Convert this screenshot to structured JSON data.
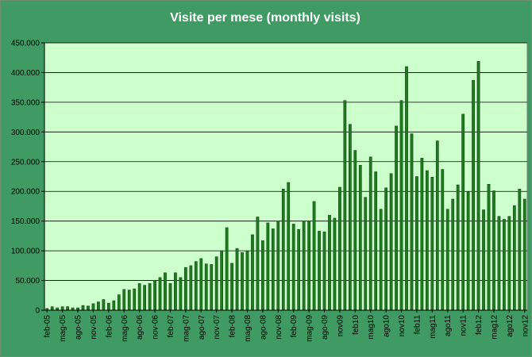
{
  "chart_data": {
    "type": "bar",
    "title": "Visite per mese (monthly visits)",
    "xlabel": "",
    "ylabel": "",
    "ylim": [
      0,
      450000
    ],
    "y_ticks": [
      "0",
      "50.000",
      "100.000",
      "150.000",
      "200.000",
      "250.000",
      "300.000",
      "350.000",
      "400.000",
      "450.000"
    ],
    "grid": true,
    "legend": "none",
    "bar_color": "#1f7a1f",
    "plot_background": "#ccffcc",
    "categories": [
      "feb-05",
      "mar-05",
      "apr-05",
      "mag-05",
      "giu-05",
      "lug-05",
      "ago-05",
      "set-05",
      "ott-05",
      "nov-05",
      "dic-05",
      "gen-06",
      "feb-06",
      "mar-06",
      "apr-06",
      "mag-06",
      "giu-06",
      "lug-06",
      "ago-06",
      "set-06",
      "ott-06",
      "nov-06",
      "dic-06",
      "gen-07",
      "feb-07",
      "mar-07",
      "apr-07",
      "mag-07",
      "giu-07",
      "lug-07",
      "ago-07",
      "set-07",
      "ott-07",
      "nov-07",
      "dic-07",
      "gen-08",
      "feb-08",
      "mar-08",
      "apr-08",
      "mag-08",
      "giu-08",
      "lug-08",
      "ago-08",
      "set-08",
      "ott-08",
      "nov-08",
      "dic-08",
      "gen-09",
      "feb-09",
      "mar-09",
      "apr-09",
      "mag-09",
      "giu-09",
      "lug-09",
      "ago-09",
      "set-09",
      "ott-09",
      "nov-09",
      "dic-09",
      "gen-10",
      "feb-10",
      "mar-10",
      "apr-10",
      "mag-10",
      "giu-10",
      "lug-10",
      "ago-10",
      "set-10",
      "ott-10",
      "nov-10",
      "dic-10",
      "gen-11",
      "feb-11",
      "mar-11",
      "apr-11",
      "mag-11",
      "giu-11",
      "lug-11",
      "ago-11",
      "set-11",
      "ott-11",
      "nov-11",
      "dic-11",
      "gen-12",
      "feb-12",
      "mar-12",
      "apr-12",
      "mag-12",
      "giu-12",
      "lug-12",
      "ago-12",
      "set-12",
      "ott-12",
      "nov-12"
    ],
    "x_tick_labels": [
      "feb-05",
      "mag-05",
      "ago-05",
      "nov-05",
      "feb-06",
      "mag-06",
      "ago-06",
      "nov-06",
      "feb-07",
      "mag-07",
      "ago-07",
      "nov-07",
      "feb-08",
      "mag-08",
      "ago-08",
      "nov-08",
      "feb-09",
      "mag-09",
      "ago-09",
      "nov09",
      "feb10",
      "mag10",
      "ago10",
      "nov10",
      "feb11",
      "mag11",
      "ago11",
      "nov11",
      "feb12",
      "mag12",
      "ago12",
      "nov12"
    ],
    "values": [
      3000,
      6000,
      4000,
      6000,
      6000,
      4000,
      4000,
      8000,
      7000,
      11000,
      14000,
      18000,
      12000,
      16000,
      26000,
      35000,
      34000,
      36000,
      45000,
      42000,
      45000,
      50000,
      55000,
      63000,
      45000,
      63000,
      55000,
      72000,
      75000,
      82000,
      87000,
      78000,
      77000,
      90000,
      100000,
      139000,
      79000,
      104000,
      97000,
      100000,
      127000,
      157000,
      117000,
      147000,
      137000,
      150000,
      204000,
      215000,
      145000,
      136000,
      150000,
      150000,
      183000,
      133000,
      132000,
      160000,
      155000,
      207000,
      353000,
      313000,
      269000,
      244000,
      190000,
      258000,
      233000,
      170000,
      206000,
      230000,
      310000,
      353000,
      410000,
      297000,
      225000,
      256000,
      235000,
      224000,
      285000,
      237000,
      170000,
      187000,
      211000,
      330000,
      199000,
      387000,
      419000,
      169000,
      212000,
      201000,
      158000,
      153000,
      158000,
      176000,
      204000,
      187000
    ]
  }
}
